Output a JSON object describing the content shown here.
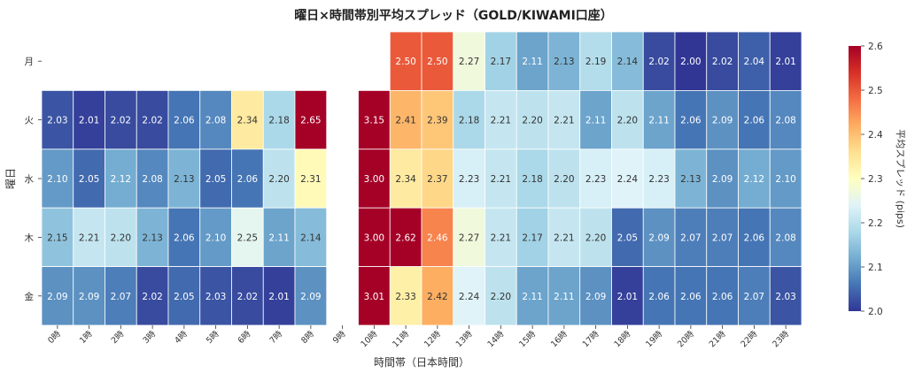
{
  "chart_data": {
    "type": "heatmap",
    "title": "曜日×時間帯別平均スプレッド（GOLD/KIWAMI口座）",
    "xlabel": "時間帯（日本時間）",
    "ylabel": "曜日",
    "x_categories": [
      "0時",
      "1時",
      "2時",
      "3時",
      "4時",
      "5時",
      "6時",
      "7時",
      "8時",
      "9時",
      "10時",
      "11時",
      "12時",
      "13時",
      "14時",
      "15時",
      "16時",
      "17時",
      "18時",
      "19時",
      "20時",
      "21時",
      "22時",
      "23時"
    ],
    "y_categories": [
      "月",
      "火",
      "水",
      "木",
      "金"
    ],
    "values": [
      [
        null,
        null,
        null,
        null,
        null,
        null,
        null,
        null,
        null,
        null,
        null,
        2.5,
        2.5,
        2.27,
        2.17,
        2.11,
        2.13,
        2.19,
        2.14,
        2.02,
        2.0,
        2.02,
        2.04,
        2.01
      ],
      [
        2.03,
        2.01,
        2.02,
        2.02,
        2.06,
        2.08,
        2.34,
        2.18,
        2.65,
        null,
        3.15,
        2.41,
        2.39,
        2.18,
        2.21,
        2.2,
        2.21,
        2.11,
        2.2,
        2.11,
        2.06,
        2.09,
        2.06,
        2.08
      ],
      [
        2.1,
        2.05,
        2.12,
        2.08,
        2.13,
        2.05,
        2.06,
        2.2,
        2.31,
        null,
        3.0,
        2.34,
        2.37,
        2.23,
        2.21,
        2.18,
        2.2,
        2.23,
        2.24,
        2.23,
        2.13,
        2.09,
        2.12,
        2.1
      ],
      [
        2.15,
        2.21,
        2.2,
        2.13,
        2.06,
        2.1,
        2.25,
        2.11,
        2.14,
        null,
        3.0,
        2.62,
        2.46,
        2.27,
        2.21,
        2.17,
        2.21,
        2.2,
        2.05,
        2.09,
        2.07,
        2.07,
        2.06,
        2.08
      ],
      [
        2.09,
        2.09,
        2.07,
        2.02,
        2.05,
        2.03,
        2.02,
        2.01,
        2.09,
        null,
        3.01,
        2.33,
        2.42,
        2.24,
        2.2,
        2.11,
        2.11,
        2.09,
        2.01,
        2.06,
        2.06,
        2.06,
        2.07,
        2.03
      ]
    ],
    "value_format": "0.00",
    "colormap": "RdYlBu_r",
    "colormap_stops": [
      "#313695",
      "#4575b4",
      "#74add1",
      "#abd9e9",
      "#e0f3f8",
      "#ffffbf",
      "#fee090",
      "#fdae61",
      "#f46d43",
      "#d73027",
      "#a50026"
    ],
    "color_range": [
      2.0,
      2.6
    ],
    "colorbar": {
      "label": "平均スプレッド (pips)",
      "ticks": [
        "2.0",
        "2.1",
        "2.2",
        "2.3",
        "2.4",
        "2.5",
        "2.6"
      ]
    },
    "grid": false,
    "legend": "colorbar-right"
  }
}
